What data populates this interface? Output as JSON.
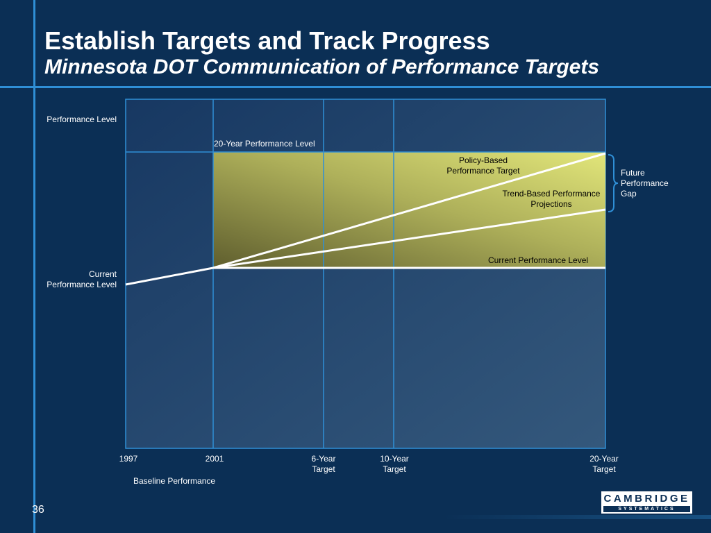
{
  "header": {
    "title": "Establish Targets and Track Progress",
    "subtitle": "Minnesota DOT Communication of Performance Targets"
  },
  "diagram": {
    "y_axis_label": "Performance Level",
    "current_level_label": "Current Performance Level",
    "twenty_year_level_label": "20-Year Performance Level",
    "policy_target_label": "Policy-Based Performance Target",
    "trend_projection_label": "Trend-Based Performance Projections",
    "current_level_line_label": "Current Performance Level",
    "future_gap_label": "Future Performance Gap",
    "x_ticks": [
      "1997",
      "2001",
      "6-Year Target",
      "10-Year Target",
      "20-Year Target"
    ],
    "baseline_label": "Baseline Performance"
  },
  "footer": {
    "page_number": "36",
    "logo_top": "CAMBRIDGE",
    "logo_bottom": "SYSTEMATICS"
  },
  "colors": {
    "background": "#0b2f55",
    "accent_line": "#2f8fd6",
    "gap_fill_light": "#e2e67a",
    "gap_fill_dark": "#5f5e2e"
  }
}
